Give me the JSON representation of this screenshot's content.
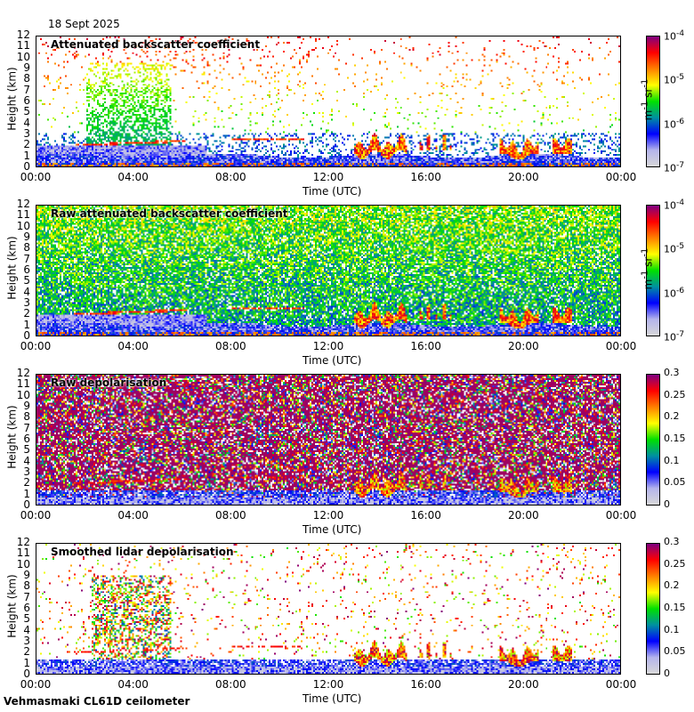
{
  "header": {
    "date": "18 Sept 2025"
  },
  "footer": {
    "station": "Vehmasmaki CL61D ceilometer"
  },
  "chart_data": [
    {
      "type": "heatmap",
      "title": "Attenuated backscatter coefficient",
      "xlabel": "Time (UTC)",
      "ylabel": "Height (km)",
      "xticks": [
        "00:00",
        "04:00",
        "08:00",
        "12:00",
        "16:00",
        "20:00",
        "00:00"
      ],
      "yticks": [
        "0",
        "1",
        "2",
        "3",
        "4",
        "5",
        "6",
        "7",
        "8",
        "9",
        "10",
        "11",
        "12"
      ],
      "ylim": [
        0,
        12
      ],
      "colorbar": {
        "scale": "log",
        "ticks": [
          "10-7",
          "10-6",
          "10-5",
          "10-4"
        ],
        "ticks_html": [
          "10<sup>-7</sup>",
          "10<sup>-6</sup>",
          "10<sup>-5</sup>",
          "10<sup>-4</sup>"
        ],
        "unit": "m-1 sr-1",
        "range": [
          1e-07,
          0.0001
        ]
      },
      "mode": "sparse"
    },
    {
      "type": "heatmap",
      "title": "Raw attenuated backscatter coefficient",
      "xlabel": "Time (UTC)",
      "ylabel": "Height (km)",
      "xticks": [
        "00:00",
        "04:00",
        "08:00",
        "12:00",
        "16:00",
        "20:00",
        "00:00"
      ],
      "yticks": [
        "0",
        "1",
        "2",
        "3",
        "4",
        "5",
        "6",
        "7",
        "8",
        "9",
        "10",
        "11",
        "12"
      ],
      "ylim": [
        0,
        12
      ],
      "colorbar": {
        "scale": "log",
        "ticks": [
          "10-7",
          "10-6",
          "10-5",
          "10-4"
        ],
        "ticks_html": [
          "10<sup>-7</sup>",
          "10<sup>-6</sup>",
          "10<sup>-5</sup>",
          "10<sup>-4</sup>"
        ],
        "unit": "m-1 sr-1",
        "range": [
          1e-07,
          0.0001
        ]
      },
      "mode": "raw"
    },
    {
      "type": "heatmap",
      "title": "Raw depolarisation",
      "xlabel": "Time (UTC)",
      "ylabel": "Height (km)",
      "xticks": [
        "00:00",
        "04:00",
        "08:00",
        "12:00",
        "16:00",
        "20:00",
        "00:00"
      ],
      "yticks": [
        "0",
        "1",
        "2",
        "3",
        "4",
        "5",
        "6",
        "7",
        "8",
        "9",
        "10",
        "11",
        "12"
      ],
      "ylim": [
        0,
        12
      ],
      "colorbar": {
        "scale": "linear",
        "ticks": [
          "0",
          "0.05",
          "0.1",
          "0.15",
          "0.2",
          "0.25",
          "0.3"
        ],
        "range": [
          0,
          0.3
        ]
      },
      "mode": "depol"
    },
    {
      "type": "heatmap",
      "title": "Smoothed lidar depolarisation",
      "xlabel": "Time (UTC)",
      "ylabel": "Height (km)",
      "xticks": [
        "00:00",
        "04:00",
        "08:00",
        "12:00",
        "16:00",
        "20:00",
        "00:00"
      ],
      "yticks": [
        "0",
        "1",
        "2",
        "3",
        "4",
        "5",
        "6",
        "7",
        "8",
        "9",
        "10",
        "11",
        "12"
      ],
      "ylim": [
        0,
        12
      ],
      "colorbar": {
        "scale": "linear",
        "ticks": [
          "0",
          "0.05",
          "0.1",
          "0.15",
          "0.2",
          "0.25",
          "0.3"
        ],
        "range": [
          0,
          0.3
        ]
      },
      "mode": "sdepol"
    }
  ],
  "colors": {
    "colormap": [
      "#d8d8d8",
      "#b4b4ec",
      "#0000ff",
      "#0090a0",
      "#00e000",
      "#ffff00",
      "#ff8000",
      "#ff0000",
      "#800080"
    ]
  }
}
